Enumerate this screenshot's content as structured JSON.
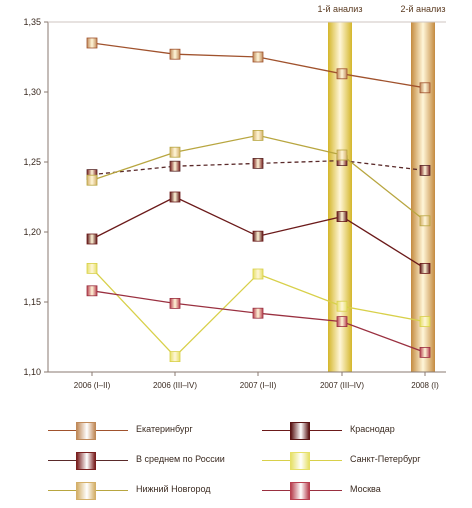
{
  "chart_data": {
    "type": "line",
    "categories": [
      "2006 (I–II)",
      "2006 (III–IV)",
      "2007 (I–II)",
      "2007 (III–IV)",
      "2008 (I)"
    ],
    "ylim": [
      1.1,
      1.35
    ],
    "yticks": [
      "1,10",
      "1,15",
      "1,20",
      "1,25",
      "1,30",
      "1,35"
    ],
    "ytick_values": [
      1.1,
      1.15,
      1.2,
      1.25,
      1.3,
      1.35
    ],
    "annotations": [
      {
        "text": "1-й анализ",
        "between": [
          2,
          3
        ],
        "color": "#d4b62a"
      },
      {
        "text": "2-й анализ",
        "between": [
          3,
          4
        ],
        "color": "#c48a3f"
      }
    ],
    "series": [
      {
        "name": "Екатеринбург",
        "values": [
          1.335,
          1.327,
          1.325,
          1.313,
          1.303
        ],
        "color": "#a0522d",
        "marker": "#c08a5a",
        "dash": false
      },
      {
        "name": "Краснодар",
        "values": [
          1.195,
          1.225,
          1.197,
          1.211,
          1.174
        ],
        "color": "#6b1a1a",
        "marker": "#5a1414",
        "dash": false
      },
      {
        "name": "В среднем по России",
        "values": [
          1.241,
          1.247,
          1.249,
          1.251,
          1.244
        ],
        "color": "#5a2a2a",
        "marker": "#7a2020",
        "dash": true
      },
      {
        "name": "Санкт-Петербург",
        "values": [
          1.174,
          1.111,
          1.17,
          1.147,
          1.136
        ],
        "color": "#d8d04a",
        "marker": "#e6e068",
        "dash": false
      },
      {
        "name": "Нижний Новгород",
        "values": [
          1.237,
          1.257,
          1.269,
          1.255,
          1.208
        ],
        "color": "#b8a640",
        "marker": "#d4b06a",
        "dash": false
      },
      {
        "name": "Москва",
        "values": [
          1.158,
          1.149,
          1.142,
          1.136,
          1.114
        ],
        "color": "#9a3040",
        "marker": "#b84050",
        "dash": false
      }
    ]
  }
}
